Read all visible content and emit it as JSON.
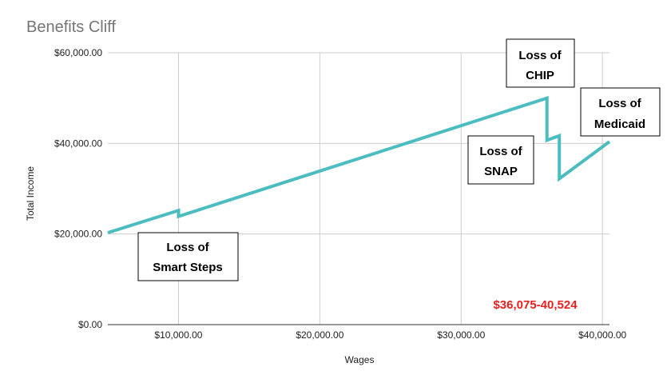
{
  "colors": {
    "series": "#4bbdc1",
    "range": "#e8211f"
  },
  "chart_data": {
    "type": "line",
    "title": "Benefits Cliff",
    "xlabel": "Wages",
    "ylabel": "Total Income",
    "xlim": [
      5000,
      40500
    ],
    "ylim": [
      0,
      60000
    ],
    "x_ticks": [
      10000,
      20000,
      30000,
      40000
    ],
    "x_tick_labels": [
      "$10,000.00",
      "$20,000.00",
      "$30,000.00",
      "$40,000.00"
    ],
    "y_ticks": [
      0,
      20000,
      40000,
      60000
    ],
    "y_tick_labels": [
      "$0.00",
      "$20,000.00",
      "$40,000.00",
      "$60,000.00"
    ],
    "grid": true,
    "legend": "none",
    "series": [
      {
        "x": [
          5000,
          10000,
          10000,
          36075,
          36075,
          36950,
          36950,
          40500
        ],
        "y": [
          20300,
          25200,
          23900,
          50000,
          40700,
          41700,
          32200,
          40400
        ]
      }
    ],
    "annotations": [
      {
        "lines": [
          "Loss of",
          "Smart Steps"
        ]
      },
      {
        "lines": [
          "Loss of",
          "SNAP"
        ]
      },
      {
        "lines": [
          "Loss of",
          "CHIP"
        ]
      },
      {
        "lines": [
          "Loss of",
          "Medicaid"
        ]
      }
    ],
    "range_label": "$36,075-40,524"
  }
}
